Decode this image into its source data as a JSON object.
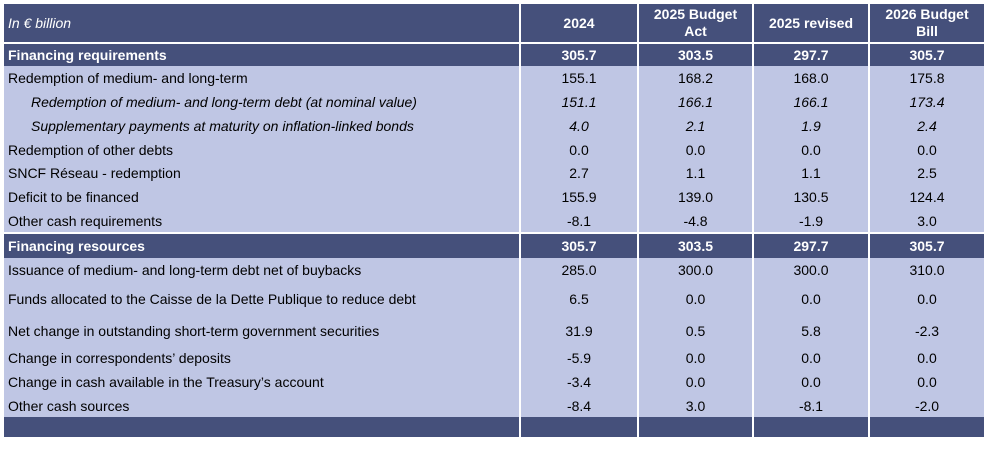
{
  "table": {
    "header": {
      "label": "In € billion",
      "columns": [
        "2024",
        "2025 Budget Act",
        "2025 revised",
        "2026 Budget Bill"
      ]
    },
    "sections": [
      {
        "title": "Financing requirements",
        "totals": [
          "305.7",
          "303.5",
          "297.7",
          "305.7"
        ],
        "rows": [
          {
            "label": "Redemption of medium- and long-term",
            "values": [
              "155.1",
              "168.2",
              "168.0",
              "175.8"
            ],
            "sub": false
          },
          {
            "label": "Redemption of medium- and long-term debt (at nominal value)",
            "values": [
              "151.1",
              "166.1",
              "166.1",
              "173.4"
            ],
            "sub": true
          },
          {
            "label": "Supplementary payments at maturity on inflation-linked bonds",
            "values": [
              "4.0",
              "2.1",
              "1.9",
              "2.4"
            ],
            "sub": true
          },
          {
            "label": "Redemption of other debts",
            "values": [
              "0.0",
              "0.0",
              "0.0",
              "0.0"
            ],
            "sub": false
          },
          {
            "label": "SNCF Réseau - redemption",
            "values": [
              "2.7",
              "1.1",
              "1.1",
              "2.5"
            ],
            "sub": false
          },
          {
            "label": "Deficit to be financed",
            "values": [
              "155.9",
              "139.0",
              "130.5",
              "124.4"
            ],
            "sub": false
          },
          {
            "label": "Other cash requirements",
            "values": [
              "-8.1",
              "-4.8",
              "-1.9",
              "3.0"
            ],
            "sub": false
          }
        ]
      },
      {
        "title": "Financing resources",
        "totals": [
          "305.7",
          "303.5",
          "297.7",
          "305.7"
        ],
        "rows": [
          {
            "label": "Issuance of medium- and long-term debt net of buybacks",
            "values": [
              "285.0",
              "300.0",
              "300.0",
              "310.0"
            ],
            "sub": false
          },
          {
            "label": "Funds allocated to the Caisse de la Dette Publique to reduce debt",
            "values": [
              "6.5",
              "0.0",
              "0.0",
              "0.0"
            ],
            "sub": false
          },
          {
            "label": "Net change in outstanding short-term government securities",
            "values": [
              "31.9",
              "0.5",
              "5.8",
              "-2.3"
            ],
            "sub": false
          },
          {
            "label": "Change in correspondents’ deposits",
            "values": [
              "-5.9",
              "0.0",
              "0.0",
              "0.0"
            ],
            "sub": false
          },
          {
            "label": "Change in cash available in the Treasury’s account",
            "values": [
              "-3.4",
              "0.0",
              "0.0",
              "0.0"
            ],
            "sub": false
          },
          {
            "label": "Other cash sources",
            "values": [
              "-8.4",
              "3.0",
              "-8.1",
              "-2.0"
            ],
            "sub": false
          }
        ]
      }
    ]
  }
}
